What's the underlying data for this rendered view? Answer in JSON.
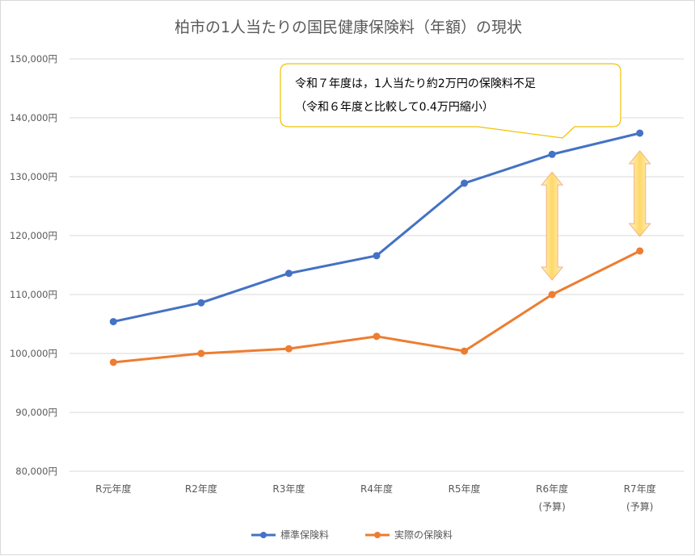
{
  "chart_data": {
    "type": "line",
    "title": "柏市の1人当たりの国民健康保険料（年額）の現状",
    "xlabel": "",
    "ylabel": "",
    "ylim": [
      80000,
      150000
    ],
    "y_ticks": [
      "150,000円",
      "140,000円",
      "130,000円",
      "120,000円",
      "110,000円",
      "100,000円",
      "90,000円",
      "80,000円"
    ],
    "y_tick_values": [
      150000,
      140000,
      130000,
      120000,
      110000,
      100000,
      90000,
      80000
    ],
    "categories": [
      [
        "R元年度"
      ],
      [
        "R2年度"
      ],
      [
        "R3年度"
      ],
      [
        "R4年度"
      ],
      [
        "R5年度"
      ],
      [
        "R6年度",
        "(予算)"
      ],
      [
        "R7年度",
        "(予算)"
      ]
    ],
    "series": [
      {
        "name": "標準保険料",
        "color": "#4472c4",
        "values": [
          105400,
          108600,
          113600,
          116600,
          128900,
          133800,
          137400
        ]
      },
      {
        "name": "実際の保険料",
        "color": "#ed7d31",
        "values": [
          98500,
          100000,
          100800,
          102900,
          100400,
          110000,
          117400
        ]
      }
    ],
    "grid": true,
    "legend_position": "bottom",
    "arrow_color": "#ffd966",
    "arrows": [
      {
        "category_index": 5,
        "from": 110000,
        "to": 133800
      },
      {
        "category_index": 6,
        "from": 117400,
        "to": 137400
      }
    ],
    "callout": {
      "line1": "令和７年度は，1人当たり約2万円の保険料不足",
      "line2": "（令和６年度と比較して0.4万円縮小）"
    }
  }
}
